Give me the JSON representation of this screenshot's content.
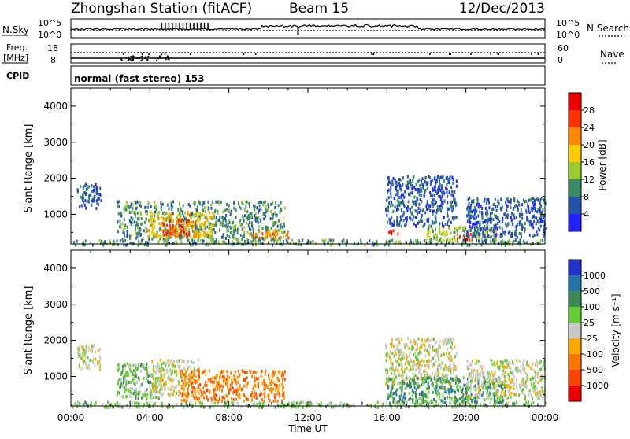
{
  "header": {
    "title": "Zhongshan Station (fitACF)",
    "beam": "Beam 15",
    "date": "12/Dec/2013"
  },
  "status_panels": {
    "nsky_label": "N.Sky",
    "nsearch_label": "N.Search",
    "freq_label_line1": "Freq.",
    "freq_label_line2": "[MHz]",
    "nave_label": "Nave",
    "cpid_label": "CPID",
    "cpid_value": "normal (fast stereo) 153",
    "noise_ticks": [
      "10^5",
      "10^0"
    ],
    "freq_ticks": [
      "18",
      "8"
    ],
    "nave_ticks": [
      "60",
      "0"
    ]
  },
  "chart_data": [
    {
      "type": "heatmap",
      "name": "power",
      "ylabel": "Slant Range [km]",
      "xlabel": "",
      "ylim": [
        180,
        4500
      ],
      "yticks": [
        "1000",
        "2000",
        "3000",
        "4000"
      ],
      "ytick_values": [
        1000,
        2000,
        3000,
        4000
      ],
      "colorbar_label": "Power [dB]",
      "colorbar_ticks": [
        "4",
        "8",
        "12",
        "16",
        "20",
        "24",
        "28"
      ],
      "colorbar_colors": [
        "#2222ff",
        "#2255aa",
        "#3b8a66",
        "#99cc33",
        "#ffcc00",
        "#ff8800",
        "#ff3300",
        "#ee0000"
      ],
      "scatter_bands": [
        {
          "t0": 0.3,
          "t1": 1.5,
          "r0": 1200,
          "r1": 1900,
          "level": 1
        },
        {
          "t0": 2.3,
          "t1": 10.8,
          "r0": 300,
          "r1": 1400,
          "level": 2
        },
        {
          "t0": 3.8,
          "t1": 7.2,
          "r0": 400,
          "r1": 1100,
          "level": 4
        },
        {
          "t0": 4.6,
          "t1": 6.0,
          "r0": 450,
          "r1": 900,
          "level": 6
        },
        {
          "t0": 9.0,
          "t1": 11.0,
          "r0": 350,
          "r1": 600,
          "level": 5
        },
        {
          "t0": 15.9,
          "t1": 19.5,
          "r0": 700,
          "r1": 2100,
          "level": 1
        },
        {
          "t0": 16.0,
          "t1": 16.6,
          "r0": 450,
          "r1": 600,
          "level": 7
        },
        {
          "t0": 18.0,
          "t1": 21.5,
          "r0": 300,
          "r1": 700,
          "level": 3
        },
        {
          "t0": 19.5,
          "t1": 20.4,
          "r0": 300,
          "r1": 500,
          "level": 6
        },
        {
          "t0": 20.0,
          "t1": 24.0,
          "r0": 400,
          "r1": 1500,
          "level": 1
        },
        {
          "t0": 0.0,
          "t1": 24.0,
          "r0": 180,
          "r1": 330,
          "level": 2
        }
      ]
    },
    {
      "type": "heatmap",
      "name": "velocity",
      "ylabel": "Slant Range [km]",
      "xlabel": "Time UT",
      "ylim": [
        180,
        4500
      ],
      "yticks": [
        "1000",
        "2000",
        "3000",
        "4000"
      ],
      "ytick_values": [
        1000,
        2000,
        3000,
        4000
      ],
      "colorbar_label": "Velocity [m s⁻¹]",
      "colorbar_ticks": [
        "1000",
        "500",
        "100",
        "25",
        "-25",
        "-100",
        "-500",
        "-1000"
      ],
      "colorbar_colors": [
        "#2233cc",
        "#2277aa",
        "#3d8a55",
        "#66cc33",
        "#c8c8c8",
        "#ffaa00",
        "#ff7700",
        "#ff4400",
        "#ee0000"
      ],
      "scatter_bands": [
        {
          "t0": 0.3,
          "t1": 1.5,
          "r0": 1200,
          "r1": 1900,
          "level": 4
        },
        {
          "t0": 2.3,
          "t1": 4.5,
          "r0": 400,
          "r1": 1400,
          "level": 3
        },
        {
          "t0": 4.0,
          "t1": 6.5,
          "r0": 500,
          "r1": 1500,
          "level": 4
        },
        {
          "t0": 5.5,
          "t1": 10.8,
          "r0": 350,
          "r1": 1200,
          "level": 6
        },
        {
          "t0": 15.9,
          "t1": 19.5,
          "r0": 800,
          "r1": 2100,
          "level": 4
        },
        {
          "t0": 16.0,
          "t1": 22.0,
          "r0": 300,
          "r1": 1000,
          "level": 2
        },
        {
          "t0": 20.0,
          "t1": 24.0,
          "r0": 400,
          "r1": 1500,
          "level": 4
        },
        {
          "t0": 0.0,
          "t1": 24.0,
          "r0": 180,
          "r1": 330,
          "level": 3
        }
      ]
    }
  ],
  "xaxis": {
    "ticks": [
      "00:00",
      "04:00",
      "08:00",
      "12:00",
      "16:00",
      "20:00",
      "00:00"
    ],
    "tick_hours": [
      0,
      4,
      8,
      12,
      16,
      20,
      24
    ],
    "xlim_hours": [
      0,
      24
    ]
  }
}
